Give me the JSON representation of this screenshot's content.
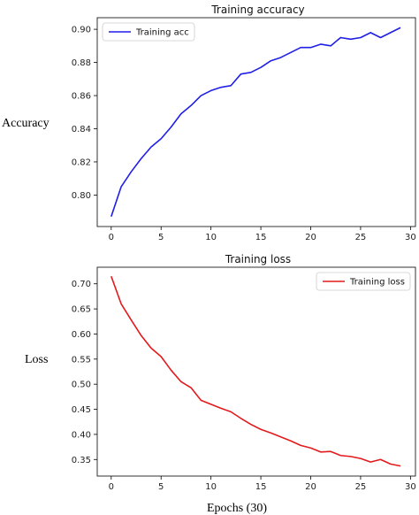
{
  "figure": {
    "ylabel_top": "Accuracy",
    "ylabel_bottom": "Loss",
    "xlabel": "Epochs (30)"
  },
  "chart_data": [
    {
      "type": "line",
      "title": "Training accuracy",
      "xlabel": "",
      "ylabel": "Accuracy",
      "xlim": [
        -1.4,
        30.5
      ],
      "ylim": [
        0.781,
        0.907
      ],
      "xticks": [
        0,
        5,
        10,
        15,
        20,
        25,
        30
      ],
      "yticks": [
        0.8,
        0.82,
        0.84,
        0.86,
        0.88,
        0.9
      ],
      "ytick_labels": [
        "0.80",
        "0.82",
        "0.84",
        "0.86",
        "0.88",
        "0.90"
      ],
      "legend": "top-left",
      "grid": false,
      "series": [
        {
          "name": "Training acc",
          "color": "#1f1fe6",
          "x": [
            0,
            1,
            2,
            3,
            4,
            5,
            6,
            7,
            8,
            9,
            10,
            11,
            12,
            13,
            14,
            15,
            16,
            17,
            18,
            19,
            20,
            21,
            22,
            23,
            24,
            25,
            26,
            27,
            28,
            29
          ],
          "y": [
            0.787,
            0.805,
            0.814,
            0.822,
            0.829,
            0.834,
            0.841,
            0.849,
            0.854,
            0.86,
            0.863,
            0.865,
            0.866,
            0.873,
            0.874,
            0.877,
            0.881,
            0.883,
            0.886,
            0.889,
            0.889,
            0.891,
            0.89,
            0.895,
            0.894,
            0.895,
            0.898,
            0.895,
            0.898,
            0.901
          ]
        }
      ]
    },
    {
      "type": "line",
      "title": "Training loss",
      "xlabel": "Epochs (30)",
      "ylabel": "Loss",
      "xlim": [
        -1.4,
        30.5
      ],
      "ylim": [
        0.317,
        0.733
      ],
      "xticks": [
        0,
        5,
        10,
        15,
        20,
        25,
        30
      ],
      "yticks": [
        0.35,
        0.4,
        0.45,
        0.5,
        0.55,
        0.6,
        0.65,
        0.7
      ],
      "ytick_labels": [
        "0.35",
        "0.40",
        "0.45",
        "0.50",
        "0.55",
        "0.60",
        "0.65",
        "0.70"
      ],
      "legend": "top-right",
      "grid": false,
      "series": [
        {
          "name": "Training loss",
          "color": "#e31a1c",
          "x": [
            0,
            1,
            2,
            3,
            4,
            5,
            6,
            7,
            8,
            9,
            10,
            11,
            12,
            13,
            14,
            15,
            16,
            17,
            18,
            19,
            20,
            21,
            22,
            23,
            24,
            25,
            26,
            27,
            28,
            29
          ],
          "y": [
            0.715,
            0.66,
            0.628,
            0.597,
            0.572,
            0.555,
            0.528,
            0.505,
            0.493,
            0.468,
            0.46,
            0.452,
            0.445,
            0.432,
            0.42,
            0.41,
            0.403,
            0.395,
            0.387,
            0.378,
            0.373,
            0.365,
            0.366,
            0.358,
            0.356,
            0.352,
            0.345,
            0.35,
            0.341,
            0.337
          ]
        }
      ]
    }
  ]
}
